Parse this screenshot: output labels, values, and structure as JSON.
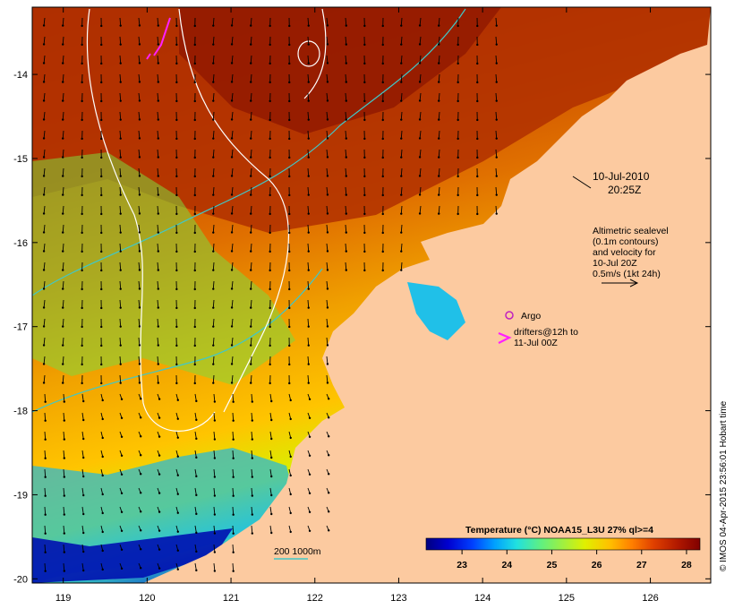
{
  "map": {
    "lon_ticks": [
      "119",
      "120",
      "121",
      "122",
      "123",
      "124",
      "125",
      "126"
    ],
    "lat_ticks": [
      "-14",
      "-15",
      "-16",
      "-17",
      "-18",
      "-19",
      "-20"
    ],
    "lon_range": [
      118.63,
      126.72
    ],
    "lat_range": [
      -20.05,
      -13.2
    ]
  },
  "date": {
    "line1": "10-Jul-2010",
    "line2": "20:25Z"
  },
  "sealevel_legend": {
    "lines": [
      "Altimetric sealevel",
      "(0.1m contours)",
      "and velocity for",
      "10-Jul 20Z",
      "0.5m/s (1kt 24h)"
    ]
  },
  "argo": {
    "label": "Argo"
  },
  "drifters": {
    "line1": "drifters@12h to",
    "line2": "11-Jul 00Z"
  },
  "isobath": {
    "label": "200  1000m"
  },
  "colorbar": {
    "title": "Temperature (°C) NOAA15_L3U 27% ql>=4",
    "ticks": [
      "23",
      "24",
      "25",
      "26",
      "27",
      "28"
    ],
    "colors": [
      "#00007f",
      "#0000d0",
      "#0040ff",
      "#00a0ff",
      "#20e0e0",
      "#60f080",
      "#a0f040",
      "#e0f000",
      "#ffc000",
      "#ff8000",
      "#e04000",
      "#b01800",
      "#800000"
    ]
  },
  "credit": "© IMOS 04-Apr-2015 23:56:01 Hobart time",
  "colors": {
    "land": "#fccaa0",
    "isobath": "#40c8c8",
    "sealevel_contour": "#ffffff",
    "argo": "#c020c0",
    "drifter": "#ff20ff"
  }
}
